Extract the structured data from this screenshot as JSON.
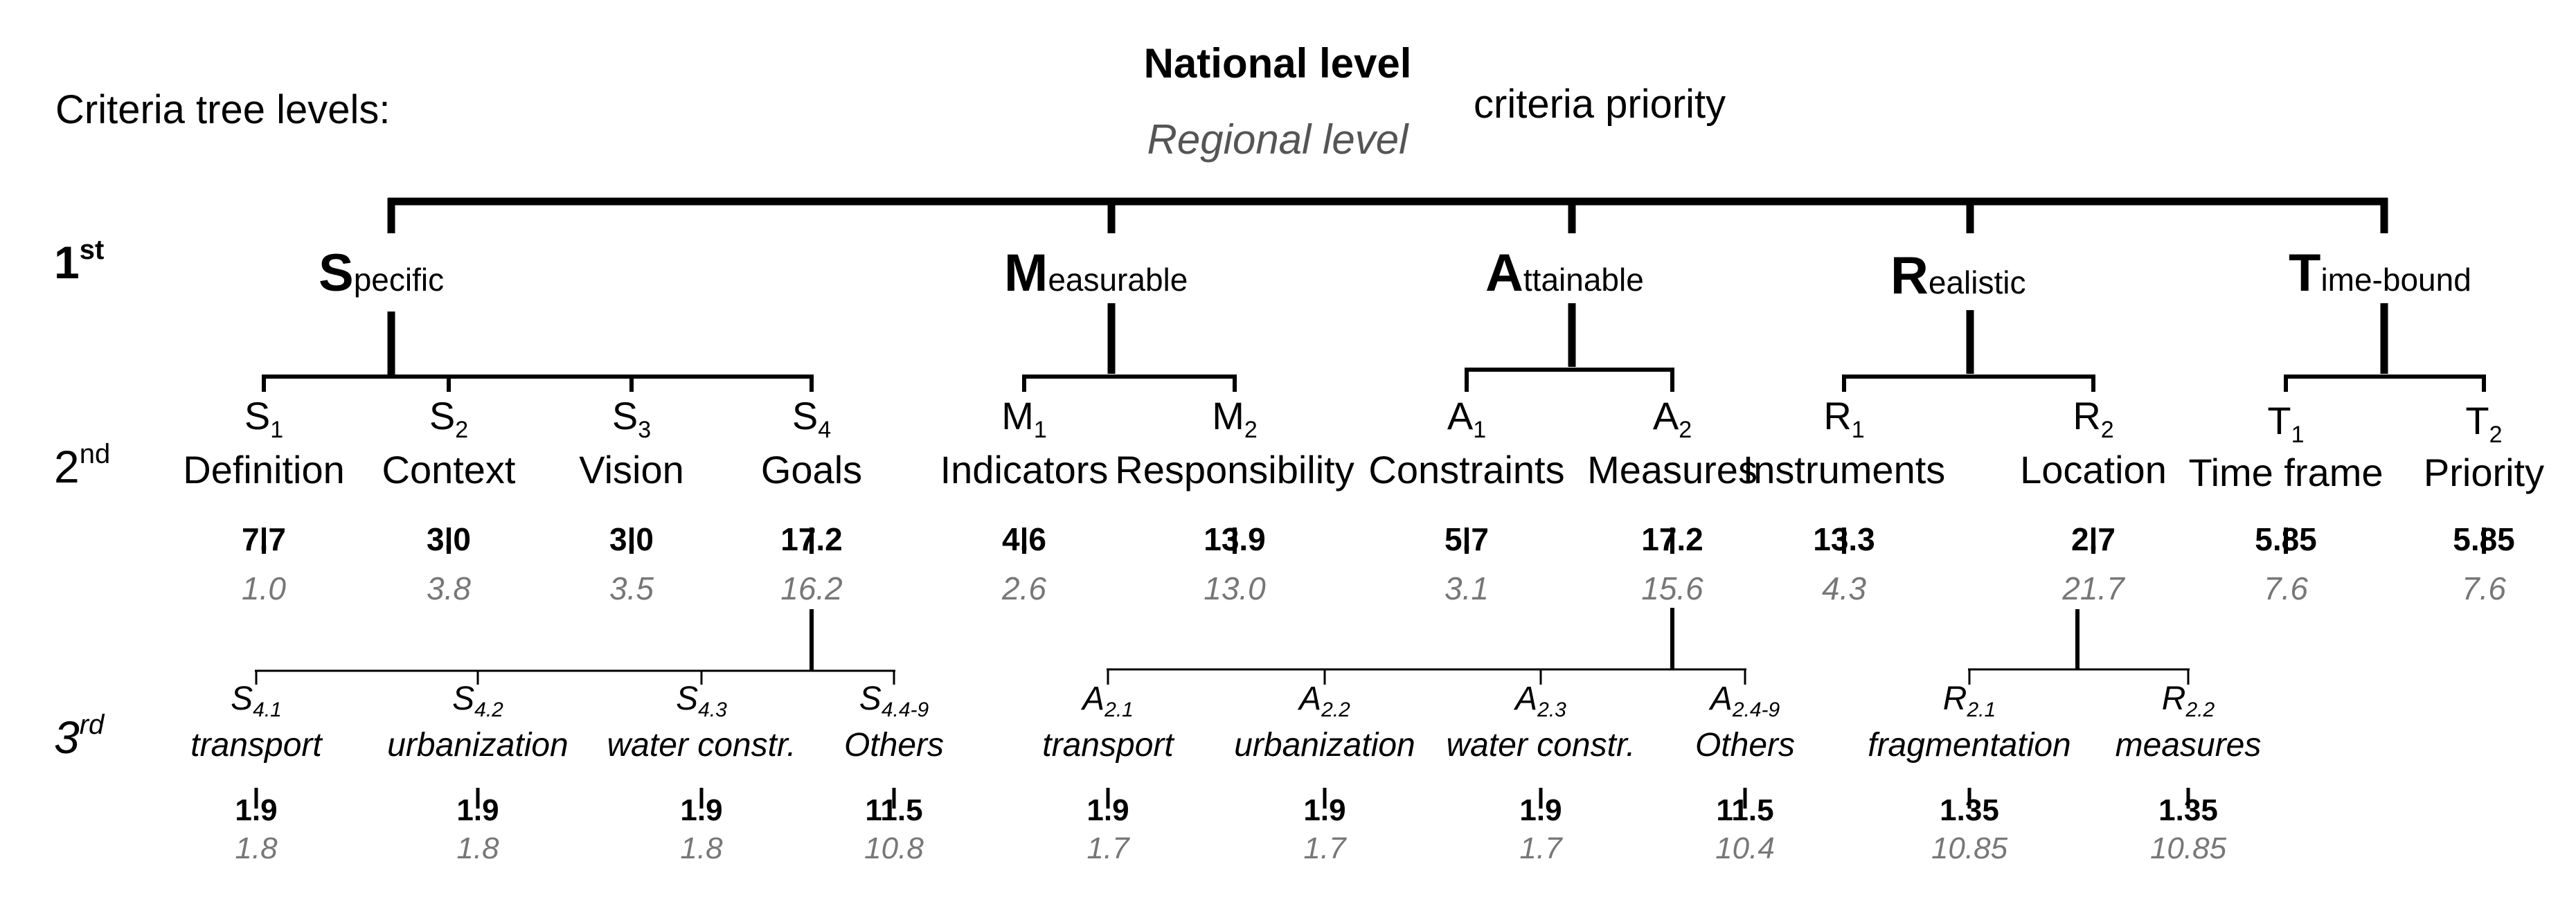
{
  "legend": {
    "caption": "Criteria tree levels:",
    "national": "National level",
    "regional": "Regional level",
    "priority": "criteria priority"
  },
  "levels": {
    "first": {
      "num": "1",
      "sup": "st"
    },
    "second": {
      "num": "2",
      "sup": "nd"
    },
    "third": {
      "num": "3",
      "sup": "rd"
    }
  },
  "first_level": [
    {
      "big": "S",
      "rest": "pecific"
    },
    {
      "big": "M",
      "rest": "easurable"
    },
    {
      "big": "A",
      "rest": "ttainable"
    },
    {
      "big": "R",
      "rest": "ealistic"
    },
    {
      "big": "T",
      "rest": "ime-bound"
    }
  ],
  "second_level": [
    {
      "code": "S",
      "sub": "1",
      "label": "Definition",
      "national": "7.7",
      "regional": "1.0"
    },
    {
      "code": "S",
      "sub": "2",
      "label": "Context",
      "national": "3.0",
      "regional": "3.8"
    },
    {
      "code": "S",
      "sub": "3",
      "label": "Vision",
      "national": "3.0",
      "regional": "3.5"
    },
    {
      "code": "S",
      "sub": "4",
      "label": "Goals",
      "national": "17.2",
      "regional": "16.2"
    },
    {
      "code": "M",
      "sub": "1",
      "label": "Indicators",
      "national": "4.6",
      "regional": "2.6"
    },
    {
      "code": "M",
      "sub": "2",
      "label": "Responsibility",
      "national": "13.9",
      "regional": "13.0"
    },
    {
      "code": "A",
      "sub": "1",
      "label": "Constraints",
      "national": "5.7",
      "regional": "3.1"
    },
    {
      "code": "A",
      "sub": "2",
      "label": "Measures",
      "national": "17.2",
      "regional": "15.6"
    },
    {
      "code": "R",
      "sub": "1",
      "label": "Instruments",
      "national": "13.3",
      "regional": "4.3"
    },
    {
      "code": "R",
      "sub": "2",
      "label": "Location",
      "national": "2.7",
      "regional": "21.7"
    },
    {
      "code": "T",
      "sub": "1",
      "label": "Time frame",
      "national": "5.85",
      "regional": "7.6"
    },
    {
      "code": "T",
      "sub": "2",
      "label": "Priority",
      "national": "5.85",
      "regional": "7.6"
    }
  ],
  "third_level": [
    {
      "code": "S",
      "sub": "4.1",
      "label": "transport",
      "national": "1.9",
      "regional": "1.8"
    },
    {
      "code": "S",
      "sub": "4.2",
      "label": "urbanization",
      "national": "1.9",
      "regional": "1.8"
    },
    {
      "code": "S",
      "sub": "4.3",
      "label": "water constr.",
      "national": "1.9",
      "regional": "1.8"
    },
    {
      "code": "S",
      "sub": "4.4-9",
      "label": "Others",
      "national": "11.5",
      "regional": "10.8"
    },
    {
      "code": "A",
      "sub": "2.1",
      "label": "transport",
      "national": "1.9",
      "regional": "1.7"
    },
    {
      "code": "A",
      "sub": "2.2",
      "label": "urbanization",
      "national": "1.9",
      "regional": "1.7"
    },
    {
      "code": "A",
      "sub": "2.3",
      "label": "water constr.",
      "national": "1.9",
      "regional": "1.7"
    },
    {
      "code": "A",
      "sub": "2.4-9",
      "label": "Others",
      "national": "11.5",
      "regional": "10.4"
    },
    {
      "code": "R",
      "sub": "2.1",
      "label": "fragmentation",
      "national": "1.35",
      "regional": "10.85"
    },
    {
      "code": "R",
      "sub": "2.2",
      "label": "measures",
      "national": "1.35",
      "regional": "10.85"
    }
  ]
}
